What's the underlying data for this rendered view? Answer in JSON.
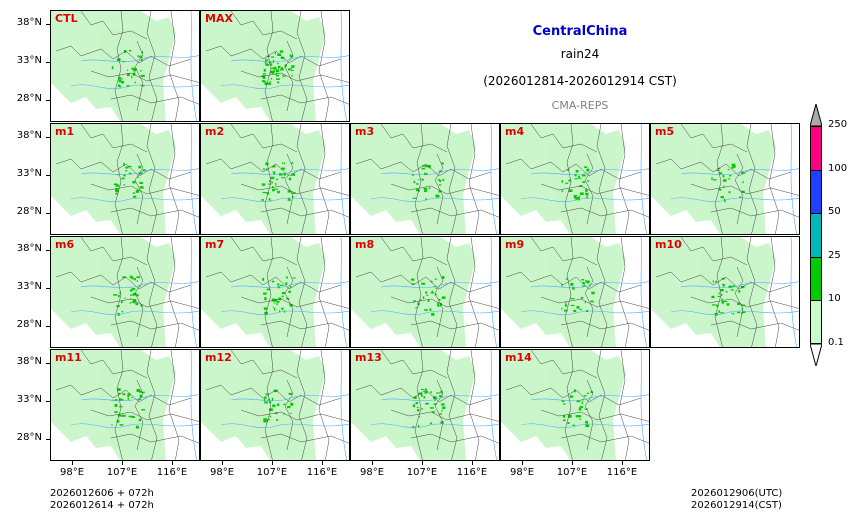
{
  "title": {
    "region": "CentralChina",
    "variable": "rain24",
    "period": "(2026012814-2026012914 CST)",
    "source": "CMA-REPS"
  },
  "panels": [
    {
      "label": "CTL",
      "intensity": 0.5
    },
    {
      "label": "MAX",
      "intensity": 1.0
    },
    {
      "label": "m1",
      "intensity": 0.35
    },
    {
      "label": "m2",
      "intensity": 0.7
    },
    {
      "label": "m3",
      "intensity": 0.45
    },
    {
      "label": "m4",
      "intensity": 0.4
    },
    {
      "label": "m5",
      "intensity": 0.35
    },
    {
      "label": "m6",
      "intensity": 0.45
    },
    {
      "label": "m7",
      "intensity": 0.55
    },
    {
      "label": "m8",
      "intensity": 0.45
    },
    {
      "label": "m9",
      "intensity": 0.35
    },
    {
      "label": "m10",
      "intensity": 0.6
    },
    {
      "label": "m11",
      "intensity": 0.5
    },
    {
      "label": "m12",
      "intensity": 0.35
    },
    {
      "label": "m13",
      "intensity": 0.55
    },
    {
      "label": "m14",
      "intensity": 0.35
    }
  ],
  "axes": {
    "lat_ticks": [
      "38°N",
      "33°N",
      "28°N"
    ],
    "lon_ticks": [
      "98°E",
      "107°E",
      "116°E"
    ]
  },
  "colorbar": {
    "levels": [
      "0.1",
      "10",
      "25",
      "50",
      "100",
      "250"
    ],
    "colors": [
      "#c8ffc8",
      "#00cc00",
      "#00b8b8",
      "#2040ff",
      "#ff0080"
    ],
    "extend_color": "#aaaaaa"
  },
  "footer": {
    "init_utc_line": "2026012606  +  072h",
    "init_cst_line": "2026012614  +  072h",
    "issue_utc": "2026012906(UTC)",
    "issue_cst": "2026012914(CST)"
  },
  "colors": {
    "title_region": "#0000cc",
    "panel_label": "#e00000",
    "source": "#808080",
    "light_rain": "#c8f5c8",
    "moderate_rain": "#00cc00",
    "river": "#4da6ff"
  }
}
